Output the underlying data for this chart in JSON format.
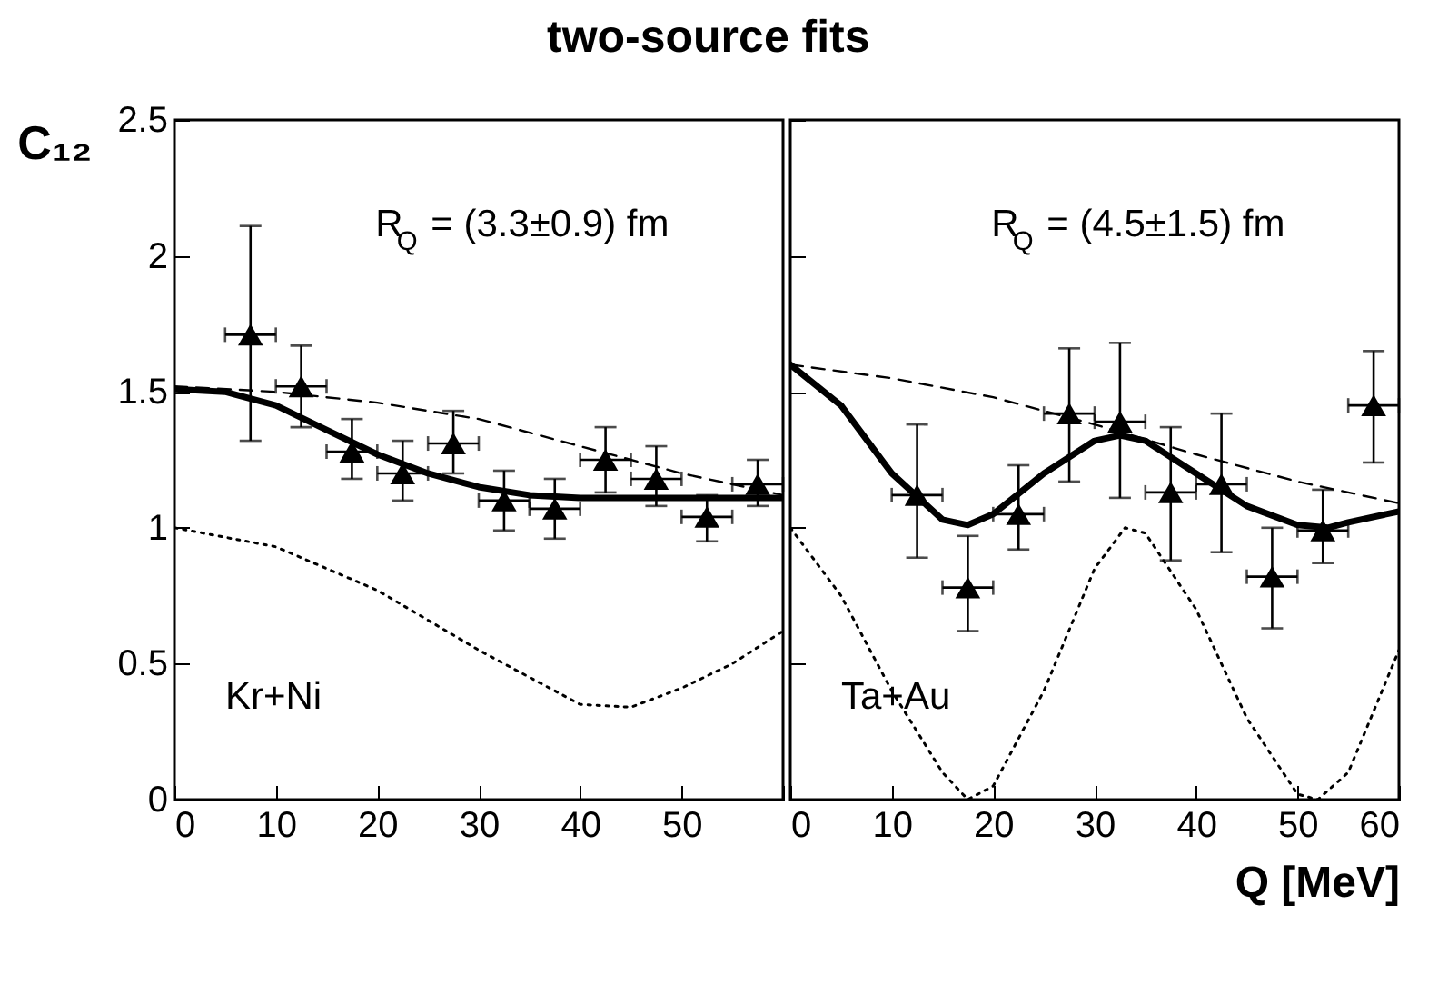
{
  "chart_data": [
    {
      "type": "scatter",
      "title": "two-source fits",
      "ylabel": "C₁₂",
      "grid": false,
      "xlim": [
        0,
        60
      ],
      "xticks": [
        0,
        10,
        20,
        30,
        40,
        50,
        {
          "value": 60,
          "label": null
        }
      ],
      "ylim": [
        0,
        2.5
      ],
      "yticks": [
        0,
        0.5,
        1,
        1.5,
        2,
        2.5
      ],
      "annotations": [
        "R$_{Q}$ = (3.3±0.9) fm",
        "Kr+Ni"
      ],
      "series": [
        {
          "type": "scatter",
          "marker": "triangle",
          "color": "#000000",
          "x": [
            7.5,
            12.5,
            17.5,
            22.5,
            27.5,
            32.5,
            37.5,
            42.5,
            47.5,
            52.5,
            57.5
          ],
          "values": [
            1.71,
            1.52,
            1.28,
            1.2,
            1.31,
            1.1,
            1.07,
            1.25,
            1.18,
            1.04,
            1.16
          ],
          "errors": [
            [
              1.32,
              2.11
            ],
            [
              1.37,
              1.67
            ],
            [
              1.18,
              1.4
            ],
            [
              1.1,
              1.32
            ],
            [
              1.2,
              1.43
            ],
            [
              0.99,
              1.21
            ],
            [
              0.96,
              1.18
            ],
            [
              1.13,
              1.37
            ],
            [
              1.08,
              1.3
            ],
            [
              0.95,
              1.12
            ],
            [
              1.08,
              1.25
            ]
          ],
          "xerrors": [
            2.5,
            2.5,
            2.5,
            2.5,
            2.5,
            2.5,
            2.5,
            2.5,
            2.5,
            2.5,
            2.5
          ]
        },
        {
          "type": "line",
          "color": "#000000",
          "line_style": "solid",
          "x": [
            0,
            5,
            10,
            15,
            20,
            25,
            30,
            35,
            40,
            45,
            50,
            55,
            60
          ],
          "values": [
            1.51,
            1.5,
            1.45,
            1.36,
            1.27,
            1.2,
            1.15,
            1.12,
            1.11,
            1.11,
            1.11,
            1.11,
            1.11
          ]
        },
        {
          "type": "line",
          "color": "#000000",
          "line_style": "dashed",
          "x": [
            0,
            10,
            20,
            30,
            40,
            50,
            60
          ],
          "values": [
            1.52,
            1.5,
            1.46,
            1.4,
            1.3,
            1.2,
            1.12
          ]
        },
        {
          "type": "line",
          "color": "#000000",
          "line_style": "dotted",
          "x": [
            0,
            10,
            20,
            30,
            40,
            45,
            50,
            55,
            60
          ],
          "values": [
            1.0,
            0.93,
            0.77,
            0.55,
            0.35,
            0.34,
            0.41,
            0.5,
            0.62
          ]
        }
      ]
    },
    {
      "type": "scatter",
      "xlabel": "Q [MeV]",
      "grid": false,
      "tick_labels": "x",
      "xlim": [
        0,
        60
      ],
      "xticks": [
        0,
        10,
        20,
        30,
        40,
        50,
        60
      ],
      "ylim": [
        0,
        2.5
      ],
      "yticks": [
        0,
        0.5,
        1,
        1.5,
        2,
        2.5
      ],
      "annotations": [
        "R$_{Q}$ = (4.5±1.5) fm",
        "Ta+Au"
      ],
      "series": [
        {
          "type": "scatter",
          "marker": "triangle",
          "color": "#000000",
          "x": [
            12.5,
            17.5,
            22.5,
            27.5,
            32.5,
            37.5,
            42.5,
            47.5,
            52.5,
            57.5
          ],
          "values": [
            1.12,
            0.78,
            1.05,
            1.42,
            1.39,
            1.13,
            1.16,
            0.82,
            0.99,
            1.45
          ],
          "errors": [
            [
              0.89,
              1.38
            ],
            [
              0.62,
              0.97
            ],
            [
              0.92,
              1.23
            ],
            [
              1.17,
              1.66
            ],
            [
              1.11,
              1.68
            ],
            [
              0.88,
              1.37
            ],
            [
              0.91,
              1.42
            ],
            [
              0.63,
              1.0
            ],
            [
              0.87,
              1.14
            ],
            [
              1.24,
              1.65
            ]
          ],
          "xerrors": [
            2.5,
            2.5,
            2.5,
            2.5,
            2.5,
            2.5,
            2.5,
            2.5,
            2.5,
            2.5
          ]
        },
        {
          "type": "line",
          "color": "#000000",
          "line_style": "solid",
          "x": [
            0,
            5,
            10,
            15,
            17.5,
            20,
            25,
            30,
            32.5,
            35,
            40,
            45,
            50,
            53,
            55,
            60
          ],
          "values": [
            1.6,
            1.45,
            1.2,
            1.03,
            1.01,
            1.05,
            1.2,
            1.32,
            1.34,
            1.32,
            1.2,
            1.08,
            1.01,
            1.0,
            1.02,
            1.06
          ]
        },
        {
          "type": "line",
          "color": "#000000",
          "line_style": "dashed",
          "x": [
            0,
            10,
            20,
            30,
            40,
            50,
            60
          ],
          "values": [
            1.6,
            1.55,
            1.48,
            1.38,
            1.27,
            1.17,
            1.09
          ]
        },
        {
          "type": "line",
          "color": "#000000",
          "line_style": "dotted",
          "x": [
            0,
            5,
            10,
            15,
            17.5,
            20,
            25,
            30,
            33,
            35,
            40,
            45,
            50,
            52,
            55,
            60
          ],
          "values": [
            1.0,
            0.75,
            0.4,
            0.1,
            0.0,
            0.05,
            0.4,
            0.85,
            1.0,
            0.98,
            0.7,
            0.3,
            0.02,
            0.0,
            0.1,
            0.55
          ]
        }
      ]
    }
  ]
}
